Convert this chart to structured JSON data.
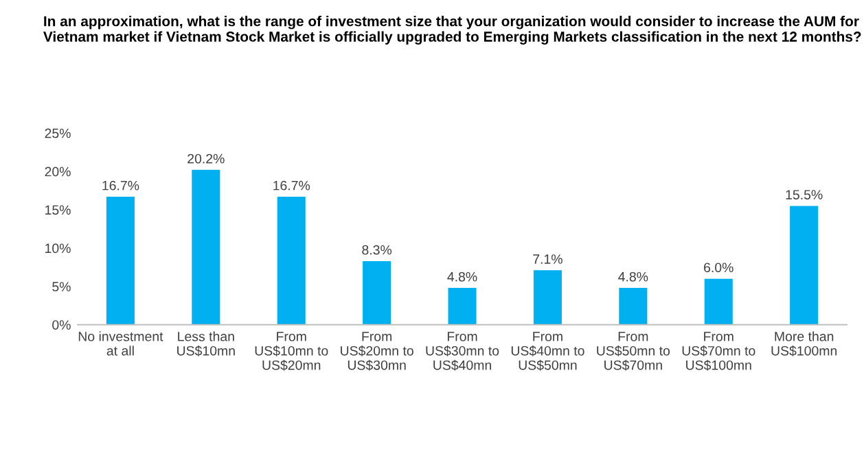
{
  "chart_data": {
    "type": "bar",
    "title": "In an approximation, what is the range of investment size that your organization would consider to increase the AUM for Vietnam market if Vietnam Stock Market is officially upgraded to Emerging Markets classification in the next 12 months?",
    "categories": [
      "No investment\nat all",
      "Less than\nUS$10mn",
      "From\nUS$10mn to\nUS$20mn",
      "From\nUS$20mn to\nUS$30mn",
      "From\nUS$30mn to\nUS$40mn",
      "From\nUS$40mn to\nUS$50mn",
      "From\nUS$50mn to\nUS$70mn",
      "From\nUS$70mn to\nUS$100mn",
      "More than\nUS$100mn"
    ],
    "values": [
      16.7,
      20.2,
      16.7,
      8.3,
      4.8,
      7.1,
      4.8,
      6.0,
      15.5
    ],
    "value_labels": [
      "16.7%",
      "20.2%",
      "16.7%",
      "8.3%",
      "4.8%",
      "7.1%",
      "4.8%",
      "6.0%",
      "15.5%"
    ],
    "color": "#00b0f0",
    "ylim": [
      0,
      25
    ],
    "yticks": [
      {
        "value": 0,
        "label": "0%"
      },
      {
        "value": 5,
        "label": "5%"
      },
      {
        "value": 10,
        "label": "10%"
      },
      {
        "value": 15,
        "label": "15%"
      },
      {
        "value": 20,
        "label": "20%"
      },
      {
        "value": 25,
        "label": "25%"
      }
    ],
    "grid": false,
    "legend": false
  }
}
